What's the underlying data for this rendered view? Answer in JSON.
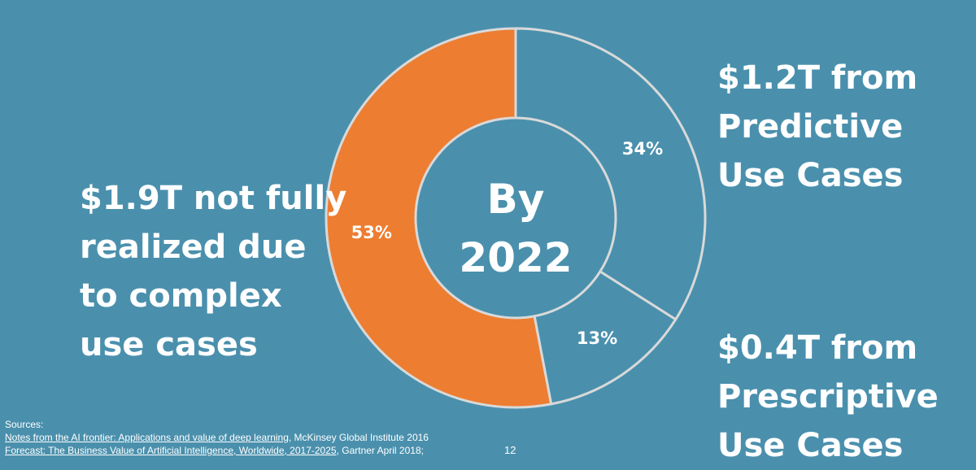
{
  "colors": {
    "background": "#4a90ad",
    "orange_segment": "#ed7d31",
    "blue_segment": "#4a90ad",
    "segment_border": "#d9d9d9",
    "text": "#ffffff"
  },
  "chart_data": {
    "type": "pie",
    "donut": true,
    "center_label": [
      "By",
      "2022"
    ],
    "slices": [
      {
        "label": "Predictive Use Cases",
        "value": 34,
        "value_label": "34%",
        "color": "#4a90ad"
      },
      {
        "label": "Prescriptive Use Cases",
        "value": 13,
        "value_label": "13%",
        "color": "#4a90ad"
      },
      {
        "label": "Not fully realized due to complex use cases",
        "value": 53,
        "value_label": "53%",
        "color": "#ed7d31"
      }
    ]
  },
  "labels": {
    "left": [
      "$1.9T not fully",
      "realized due",
      "to complex",
      "use cases"
    ],
    "predictive": [
      "$1.2T from",
      "Predictive",
      "Use Cases"
    ],
    "prescriptive": [
      "$0.4T from",
      "Prescriptive",
      "Use Cases"
    ]
  },
  "sources": {
    "heading": "Sources:",
    "items": [
      {
        "link": "Notes from the AI frontier: Applications and value of deep learning",
        "rest": ", McKinsey Global Institute 2016"
      },
      {
        "link": "Forecast: The Business Value of Artificial Intelligence, Worldwide, 2017-2025",
        "rest": ", Gartner April 2018;"
      }
    ]
  },
  "page_number": "12"
}
